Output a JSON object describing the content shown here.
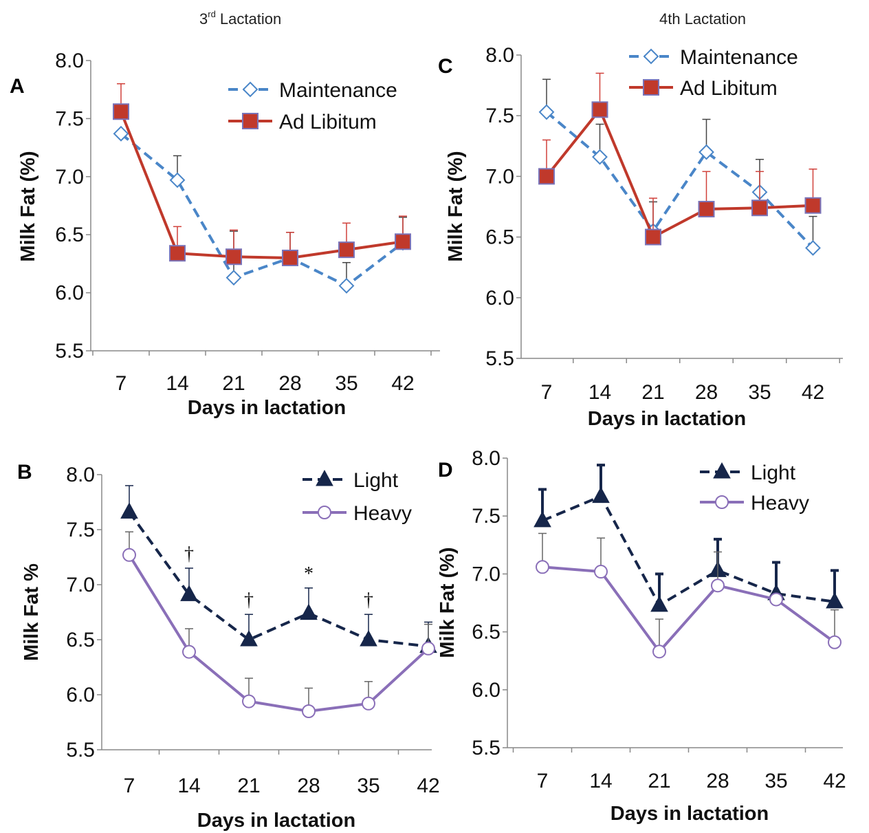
{
  "column_titles": {
    "left_base": "3",
    "left_sup": "rd",
    "left_rest": " Lactation",
    "right": "4th Lactation"
  },
  "chart_data": [
    {
      "panel": "A",
      "type": "line",
      "xlabel": "Days in lactation",
      "ylabel": "Milk Fat (%)",
      "categories": [
        "7",
        "14",
        "21",
        "28",
        "35",
        "42"
      ],
      "ylim": [
        5.5,
        8.0
      ],
      "yticks": [
        "5.5",
        "6.0",
        "6.5",
        "7.0",
        "7.5",
        "8.0"
      ],
      "grid": false,
      "legend": "top-right",
      "series": [
        {
          "name": "Maintenance",
          "values": [
            7.37,
            6.97,
            6.13,
            6.3,
            6.06,
            6.43
          ],
          "error": [
            0.0,
            0.21,
            0.4,
            0.22,
            0.2,
            0.22
          ],
          "color": "#4a86c8",
          "style": "dashed",
          "marker": "diamond-open"
        },
        {
          "name": "Ad Libitum",
          "values": [
            7.56,
            6.34,
            6.31,
            6.3,
            6.37,
            6.44
          ],
          "error": [
            0.24,
            0.23,
            0.23,
            0.22,
            0.23,
            0.22
          ],
          "color": "#c0392b",
          "style": "solid",
          "marker": "square-filled"
        }
      ]
    },
    {
      "panel": "C",
      "type": "line",
      "xlabel": "Days in lactation",
      "ylabel": "Milk Fat (%)",
      "categories": [
        "7",
        "14",
        "21",
        "28",
        "35",
        "42"
      ],
      "ylim": [
        5.5,
        8.0
      ],
      "yticks": [
        "5.5",
        "6.0",
        "6.5",
        "7.0",
        "7.5",
        "8.0"
      ],
      "grid": false,
      "legend": "top-right",
      "series": [
        {
          "name": "Maintenance",
          "values": [
            7.53,
            7.16,
            6.55,
            7.2,
            6.87,
            6.41
          ],
          "error": [
            0.27,
            0.27,
            0.24,
            0.27,
            0.27,
            0.26
          ],
          "color": "#4a86c8",
          "style": "dashed",
          "marker": "diamond-open"
        },
        {
          "name": "Ad Libitum",
          "values": [
            7.0,
            7.55,
            6.5,
            6.73,
            6.74,
            6.76
          ],
          "error": [
            0.3,
            0.3,
            0.32,
            0.31,
            0.3,
            0.3
          ],
          "color": "#c0392b",
          "style": "solid",
          "marker": "square-filled"
        }
      ]
    },
    {
      "panel": "B",
      "type": "line",
      "xlabel": "Days in lactation",
      "ylabel": "Milk Fat %",
      "categories": [
        "7",
        "14",
        "21",
        "28",
        "35",
        "42"
      ],
      "ylim": [
        5.5,
        8.0
      ],
      "yticks": [
        "5.5",
        "6.0",
        "6.5",
        "7.0",
        "7.5",
        "8.0"
      ],
      "grid": false,
      "legend": "top-right",
      "annotations": [
        "",
        "†",
        "†",
        "*",
        "†",
        ""
      ],
      "series": [
        {
          "name": "Light",
          "values": [
            7.66,
            6.91,
            6.5,
            6.74,
            6.5,
            6.44
          ],
          "error": [
            0.24,
            0.24,
            0.23,
            0.23,
            0.23,
            0.22
          ],
          "color": "#16264a",
          "style": "dashed",
          "marker": "triangle-filled"
        },
        {
          "name": "Heavy",
          "values": [
            7.27,
            6.39,
            5.94,
            5.85,
            5.92,
            6.42
          ],
          "error": [
            0.21,
            0.21,
            0.21,
            0.21,
            0.2,
            0.22
          ],
          "color": "#8a6fb8",
          "style": "solid",
          "marker": "circle-open"
        }
      ]
    },
    {
      "panel": "D",
      "type": "line",
      "xlabel": "Days in lactation",
      "ylabel": "Milk Fat (%)",
      "categories": [
        "7",
        "14",
        "21",
        "28",
        "35",
        "42"
      ],
      "ylim": [
        5.5,
        8.0
      ],
      "yticks": [
        "5.5",
        "6.0",
        "6.5",
        "7.0",
        "7.5",
        "8.0"
      ],
      "grid": false,
      "legend": "top-right",
      "series": [
        {
          "name": "Light",
          "values": [
            7.46,
            7.67,
            6.73,
            7.03,
            6.83,
            6.76
          ],
          "error": [
            0.27,
            0.27,
            0.27,
            0.27,
            0.27,
            0.27
          ],
          "color": "#16264a",
          "style": "dashed",
          "marker": "triangle-filled"
        },
        {
          "name": "Heavy",
          "values": [
            7.06,
            7.02,
            6.33,
            6.9,
            6.78,
            6.41
          ],
          "error": [
            0.29,
            0.29,
            0.28,
            0.29,
            0.0,
            0.28
          ],
          "color": "#8a6fb8",
          "style": "solid",
          "marker": "circle-open"
        }
      ]
    }
  ]
}
